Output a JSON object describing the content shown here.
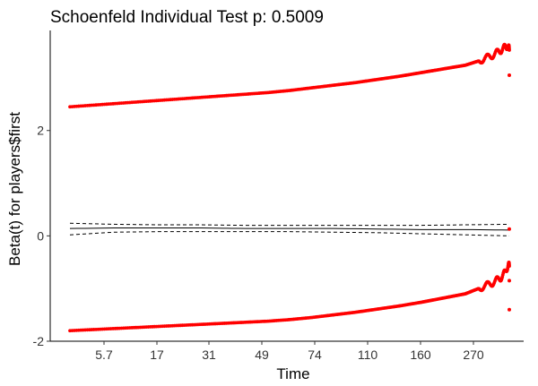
{
  "chart_data": {
    "type": "scatter",
    "title": "Schoenfeld Individual Test p: 0.5009",
    "xlabel": "Time",
    "ylabel": "Beta(t) for players$first",
    "x_tick_labels": [
      "5.7",
      "17",
      "31",
      "49",
      "74",
      "110",
      "160",
      "270"
    ],
    "y_ticks": [
      -2,
      0,
      2
    ],
    "ylim": [
      -2.0,
      3.9
    ],
    "grid": false,
    "legend": "none",
    "colors": {
      "points": "#ff0000",
      "lines": "#000000"
    },
    "series": [
      {
        "kind": "points",
        "x_rank": [
          0,
          0.05,
          0.1,
          0.15,
          0.2,
          0.25,
          0.3,
          0.35,
          0.4,
          0.45,
          0.5,
          0.55,
          0.6,
          0.65,
          0.7,
          0.75,
          0.8,
          0.85,
          0.9,
          0.93,
          0.96,
          0.98,
          0.99,
          0.995,
          1.0
        ],
        "values": [
          2.45,
          2.48,
          2.51,
          2.54,
          2.57,
          2.6,
          2.63,
          2.66,
          2.69,
          2.72,
          2.76,
          2.81,
          2.86,
          2.91,
          2.97,
          3.03,
          3.1,
          3.17,
          3.24,
          3.32,
          3.42,
          3.52,
          3.58,
          3.6,
          3.55
        ]
      },
      {
        "kind": "points",
        "x_rank": [
          0,
          0.05,
          0.1,
          0.15,
          0.2,
          0.25,
          0.3,
          0.35,
          0.4,
          0.45,
          0.5,
          0.55,
          0.6,
          0.65,
          0.7,
          0.75,
          0.8,
          0.85,
          0.9,
          0.93,
          0.96,
          0.98,
          0.99,
          0.995,
          1.0
        ],
        "values": [
          -1.8,
          -1.78,
          -1.76,
          -1.74,
          -1.72,
          -1.7,
          -1.68,
          -1.66,
          -1.64,
          -1.62,
          -1.59,
          -1.55,
          -1.5,
          -1.45,
          -1.39,
          -1.33,
          -1.26,
          -1.18,
          -1.1,
          -1.0,
          -0.9,
          -0.8,
          -0.7,
          -0.6,
          -0.55
        ]
      },
      {
        "kind": "solid-line",
        "x_rank": [
          0,
          0.1,
          0.2,
          0.3,
          0.4,
          0.5,
          0.6,
          0.7,
          0.8,
          0.9,
          1.0
        ],
        "values": [
          0.14,
          0.15,
          0.15,
          0.15,
          0.14,
          0.14,
          0.14,
          0.13,
          0.12,
          0.12,
          0.11
        ]
      },
      {
        "kind": "dashed-line",
        "x_rank": [
          0,
          0.1,
          0.2,
          0.3,
          0.4,
          0.5,
          0.6,
          0.7,
          0.8,
          0.9,
          1.0
        ],
        "values": [
          0.24,
          0.22,
          0.21,
          0.21,
          0.2,
          0.2,
          0.2,
          0.2,
          0.2,
          0.21,
          0.22
        ]
      },
      {
        "kind": "dashed-line",
        "x_rank": [
          0,
          0.1,
          0.2,
          0.3,
          0.4,
          0.5,
          0.6,
          0.7,
          0.8,
          0.9,
          1.0
        ],
        "values": [
          0.02,
          0.07,
          0.08,
          0.08,
          0.08,
          0.08,
          0.07,
          0.06,
          0.04,
          0.02,
          0.0
        ]
      }
    ],
    "outliers": [
      {
        "x_rank": 1.0,
        "value": 3.05
      },
      {
        "x_rank": 1.0,
        "value": 0.13
      },
      {
        "x_rank": 1.0,
        "value": -0.85
      },
      {
        "x_rank": 1.0,
        "value": -1.4
      }
    ]
  }
}
